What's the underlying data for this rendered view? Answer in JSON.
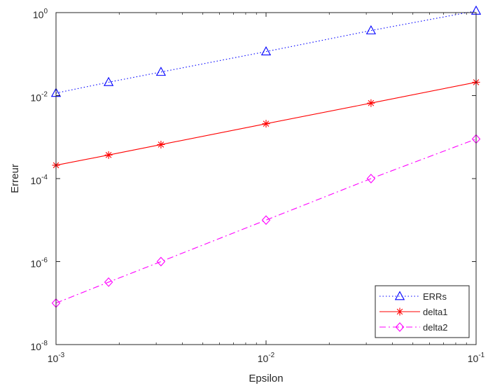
{
  "chart_data": {
    "type": "line",
    "xlabel": "Epsilon",
    "ylabel": "Erreur",
    "xscale": "log",
    "yscale": "log",
    "xlim": [
      0.001,
      0.1
    ],
    "ylim": [
      1e-08,
      1
    ],
    "x_ticks": [
      {
        "value": 0.001,
        "base": "10",
        "exp": "-3"
      },
      {
        "value": 0.01,
        "base": "10",
        "exp": "-2"
      },
      {
        "value": 0.1,
        "base": "10",
        "exp": "-1"
      }
    ],
    "y_ticks": [
      {
        "value": 1e-08,
        "base": "10",
        "exp": "-8"
      },
      {
        "value": 1e-06,
        "base": "10",
        "exp": "-6"
      },
      {
        "value": 0.0001,
        "base": "10",
        "exp": "-4"
      },
      {
        "value": 0.01,
        "base": "10",
        "exp": "-2"
      },
      {
        "value": 1,
        "base": "10",
        "exp": "0"
      }
    ],
    "grid": false,
    "legend_position": "bottom-right",
    "x": [
      0.001,
      0.00178,
      0.00316,
      0.01,
      0.0316,
      0.1
    ],
    "series": [
      {
        "name": "ERRs",
        "color": "#0000ff",
        "line_style": "dotted",
        "marker": "triangle",
        "values": [
          0.0115,
          0.021,
          0.037,
          0.115,
          0.37,
          1.1
        ]
      },
      {
        "name": "delta1",
        "color": "#ff0000",
        "line_style": "solid",
        "marker": "asterisk",
        "values": [
          0.00021,
          0.00037,
          0.00066,
          0.0021,
          0.0066,
          0.021
        ]
      },
      {
        "name": "delta2",
        "color": "#ff00ff",
        "line_style": "dash-dot",
        "marker": "diamond",
        "values": [
          1e-07,
          3.2e-07,
          1e-06,
          1e-05,
          0.0001,
          0.0009
        ]
      }
    ]
  }
}
